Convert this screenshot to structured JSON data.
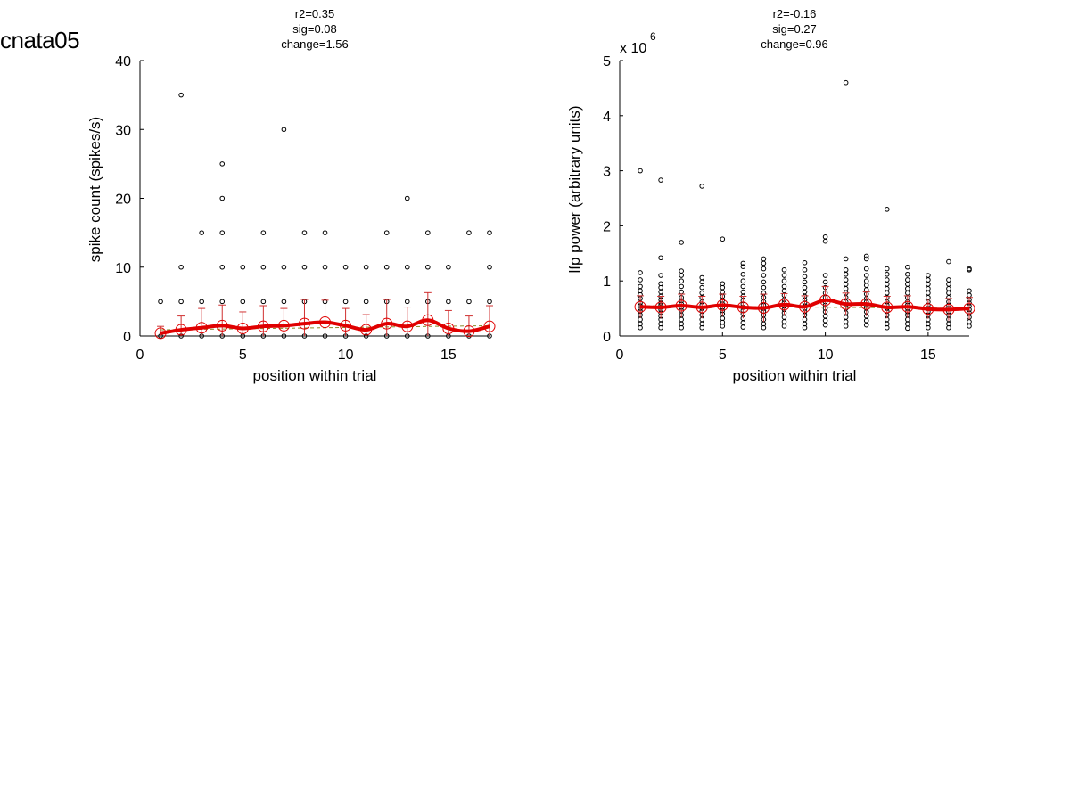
{
  "figure": {
    "title": "cnata05"
  },
  "colors": {
    "mean_line": "#e00000",
    "points": "#000000",
    "fit_line": "#8a8a2a",
    "errorbar": "#d03030"
  },
  "chart_data": [
    {
      "type": "scatter",
      "title_lines": [
        "r2=0.35",
        "sig=0.08",
        "change=1.56"
      ],
      "xlabel": "position within trial",
      "ylabel": "spike count (spikes/s)",
      "exponent": "",
      "xlim": [
        0,
        17
      ],
      "ylim": [
        0,
        40
      ],
      "xticks": [
        "0",
        "5",
        "10",
        "15"
      ],
      "xtick_values": [
        0,
        5,
        10,
        15
      ],
      "yticks": [
        "0",
        "10",
        "20",
        "30",
        "40"
      ],
      "ytick_values": [
        0,
        10,
        20,
        30,
        40
      ],
      "grid": false,
      "x": [
        1,
        2,
        3,
        4,
        5,
        6,
        7,
        8,
        9,
        10,
        11,
        12,
        13,
        14,
        15,
        16,
        17
      ],
      "mean": [
        0.4,
        0.9,
        1.2,
        1.5,
        1.1,
        1.4,
        1.5,
        1.8,
        2.0,
        1.5,
        0.9,
        1.8,
        1.4,
        2.3,
        1.1,
        0.7,
        1.4
      ],
      "error": [
        1.0,
        2.0,
        2.8,
        3.0,
        2.4,
        3.0,
        2.5,
        3.5,
        3.2,
        2.5,
        2.2,
        3.5,
        2.8,
        4.0,
        2.6,
        2.2,
        3.0
      ],
      "fit": [
        0.9,
        1.5
      ],
      "points": [
        {
          "x": 1,
          "y": [
            0,
            5
          ]
        },
        {
          "x": 2,
          "y": [
            0,
            5,
            10,
            35
          ]
        },
        {
          "x": 3,
          "y": [
            0,
            5,
            15
          ]
        },
        {
          "x": 4,
          "y": [
            0,
            5,
            10,
            15,
            20,
            25
          ]
        },
        {
          "x": 5,
          "y": [
            0,
            5,
            10
          ]
        },
        {
          "x": 6,
          "y": [
            0,
            5,
            10,
            15
          ]
        },
        {
          "x": 7,
          "y": [
            0,
            5,
            10,
            30
          ]
        },
        {
          "x": 8,
          "y": [
            0,
            5,
            10,
            15
          ]
        },
        {
          "x": 9,
          "y": [
            0,
            5,
            10,
            15
          ]
        },
        {
          "x": 10,
          "y": [
            0,
            5,
            10
          ]
        },
        {
          "x": 11,
          "y": [
            0,
            5,
            10
          ]
        },
        {
          "x": 12,
          "y": [
            0,
            5,
            10,
            15
          ]
        },
        {
          "x": 13,
          "y": [
            0,
            5,
            10,
            20
          ]
        },
        {
          "x": 14,
          "y": [
            0,
            5,
            10,
            15
          ]
        },
        {
          "x": 15,
          "y": [
            0,
            5,
            10
          ]
        },
        {
          "x": 16,
          "y": [
            0,
            5,
            15
          ]
        },
        {
          "x": 17,
          "y": [
            0,
            5,
            10,
            15
          ]
        }
      ]
    },
    {
      "type": "scatter",
      "title_lines": [
        "r2=-0.16",
        "sig=0.27",
        "change=0.96"
      ],
      "xlabel": "position within trial",
      "ylabel": "lfp power (arbitrary units)",
      "exponent": "x 10",
      "exponent_power": "6",
      "xlim": [
        0,
        17
      ],
      "ylim": [
        0,
        5
      ],
      "xticks": [
        "0",
        "5",
        "10",
        "15"
      ],
      "xtick_values": [
        0,
        5,
        10,
        15
      ],
      "yticks": [
        "0",
        "1",
        "2",
        "3",
        "4",
        "5"
      ],
      "ytick_values": [
        0,
        1,
        2,
        3,
        4,
        5
      ],
      "grid": false,
      "x": [
        1,
        2,
        3,
        4,
        5,
        6,
        7,
        8,
        9,
        10,
        11,
        12,
        13,
        14,
        15,
        16,
        17
      ],
      "mean": [
        0.53,
        0.52,
        0.55,
        0.52,
        0.56,
        0.52,
        0.51,
        0.57,
        0.53,
        0.65,
        0.58,
        0.58,
        0.52,
        0.53,
        0.49,
        0.48,
        0.5
      ],
      "error": [
        0.2,
        0.2,
        0.21,
        0.2,
        0.2,
        0.2,
        0.25,
        0.2,
        0.2,
        0.25,
        0.2,
        0.22,
        0.2,
        0.2,
        0.18,
        0.2,
        0.2
      ],
      "fit": [
        0.55,
        0.5
      ],
      "points": [
        {
          "x": 1,
          "y": [
            0.15,
            0.22,
            0.3,
            0.38,
            0.45,
            0.5,
            0.55,
            0.6,
            0.68,
            0.75,
            0.82,
            0.9,
            1.02,
            1.15,
            3.0
          ]
        },
        {
          "x": 2,
          "y": [
            0.15,
            0.22,
            0.3,
            0.36,
            0.42,
            0.48,
            0.52,
            0.56,
            0.6,
            0.66,
            0.72,
            0.8,
            0.88,
            0.95,
            1.1,
            1.42,
            2.83
          ]
        },
        {
          "x": 3,
          "y": [
            0.15,
            0.22,
            0.3,
            0.38,
            0.46,
            0.52,
            0.58,
            0.64,
            0.7,
            0.8,
            0.9,
            1.0,
            1.1,
            1.18,
            1.7
          ]
        },
        {
          "x": 4,
          "y": [
            0.15,
            0.22,
            0.3,
            0.38,
            0.45,
            0.5,
            0.56,
            0.62,
            0.7,
            0.78,
            0.88,
            0.98,
            1.06,
            2.72
          ]
        },
        {
          "x": 5,
          "y": [
            0.18,
            0.25,
            0.32,
            0.4,
            0.46,
            0.52,
            0.58,
            0.65,
            0.72,
            0.8,
            0.88,
            0.95,
            1.76
          ]
        },
        {
          "x": 6,
          "y": [
            0.16,
            0.24,
            0.32,
            0.4,
            0.46,
            0.52,
            0.58,
            0.64,
            0.72,
            0.8,
            0.9,
            1.0,
            1.12,
            1.26,
            1.32
          ]
        },
        {
          "x": 7,
          "y": [
            0.15,
            0.22,
            0.3,
            0.38,
            0.45,
            0.5,
            0.56,
            0.62,
            0.7,
            0.78,
            0.88,
            0.98,
            1.1,
            1.22,
            1.32,
            1.4
          ]
        },
        {
          "x": 8,
          "y": [
            0.18,
            0.26,
            0.34,
            0.42,
            0.48,
            0.54,
            0.6,
            0.66,
            0.74,
            0.82,
            0.9,
            1.0,
            1.1,
            1.2
          ]
        },
        {
          "x": 9,
          "y": [
            0.15,
            0.22,
            0.3,
            0.38,
            0.44,
            0.5,
            0.55,
            0.6,
            0.66,
            0.72,
            0.8,
            0.88,
            0.98,
            1.08,
            1.2,
            1.33
          ]
        },
        {
          "x": 10,
          "y": [
            0.2,
            0.28,
            0.36,
            0.44,
            0.5,
            0.56,
            0.62,
            0.7,
            0.78,
            0.88,
            0.98,
            1.1,
            1.72,
            1.8
          ]
        },
        {
          "x": 11,
          "y": [
            0.18,
            0.26,
            0.34,
            0.42,
            0.5,
            0.56,
            0.62,
            0.7,
            0.78,
            0.86,
            0.94,
            1.02,
            1.12,
            1.2,
            1.4,
            4.6
          ]
        },
        {
          "x": 12,
          "y": [
            0.2,
            0.28,
            0.36,
            0.44,
            0.5,
            0.56,
            0.62,
            0.68,
            0.76,
            0.84,
            0.92,
            1.0,
            1.1,
            1.22,
            1.4,
            1.45
          ]
        },
        {
          "x": 13,
          "y": [
            0.15,
            0.22,
            0.3,
            0.38,
            0.45,
            0.5,
            0.56,
            0.62,
            0.7,
            0.78,
            0.86,
            0.94,
            1.02,
            1.12,
            1.22,
            2.3
          ]
        },
        {
          "x": 14,
          "y": [
            0.14,
            0.22,
            0.3,
            0.38,
            0.44,
            0.5,
            0.56,
            0.62,
            0.7,
            0.78,
            0.86,
            0.94,
            1.02,
            1.12,
            1.25
          ]
        },
        {
          "x": 15,
          "y": [
            0.15,
            0.22,
            0.3,
            0.38,
            0.44,
            0.5,
            0.56,
            0.62,
            0.7,
            0.78,
            0.86,
            0.94,
            1.02,
            1.1
          ]
        },
        {
          "x": 16,
          "y": [
            0.15,
            0.22,
            0.3,
            0.38,
            0.44,
            0.5,
            0.56,
            0.62,
            0.7,
            0.78,
            0.86,
            0.94,
            1.02,
            1.35
          ]
        },
        {
          "x": 17,
          "y": [
            0.18,
            0.26,
            0.34,
            0.42,
            0.48,
            0.54,
            0.6,
            0.66,
            0.74,
            0.82,
            1.2,
            1.22
          ]
        }
      ]
    }
  ]
}
